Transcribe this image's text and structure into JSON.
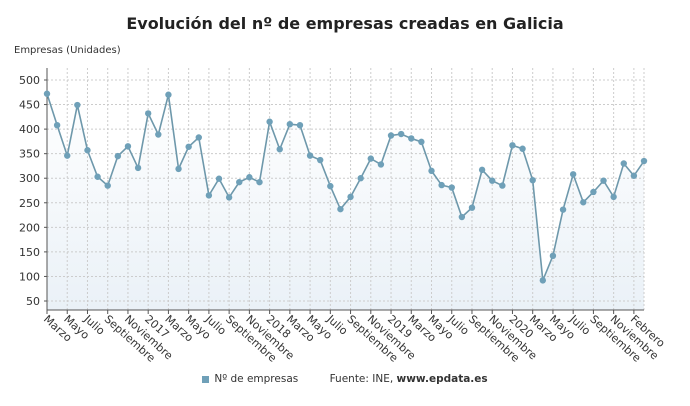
{
  "chart_data": {
    "type": "line",
    "title": "Evolución del nº de empresas creadas en Galicia",
    "ylabel": "Empresas (Unidades)",
    "ylim": [
      50,
      520
    ],
    "yticks": [
      50,
      100,
      150,
      200,
      250,
      300,
      350,
      400,
      450,
      500
    ],
    "grid": true,
    "legend_placement": "bottom",
    "series_color": "#6fa0b8",
    "tick_labels": [
      "Marzo",
      "Mayo",
      "Julio",
      "Septiembre",
      "Noviembre",
      "2017",
      "Marzo",
      "Mayo",
      "Julio",
      "Septiembre",
      "Noviembre",
      "2018",
      "Marzo",
      "Mayo",
      "Julio",
      "Septiembre",
      "Noviembre",
      "2019",
      "Marzo",
      "Mayo",
      "Julio",
      "Septiembre",
      "Noviembre",
      "2020",
      "Marzo",
      "Mayo",
      "Julio",
      "Septiembre",
      "Noviembre",
      "Febrero"
    ],
    "series": [
      {
        "name": "Nº de empresas",
        "values": [
          472,
          408,
          346,
          449,
          357,
          303,
          285,
          345,
          365,
          321,
          432,
          389,
          470,
          319,
          364,
          383,
          265,
          299,
          261,
          292,
          302,
          292,
          415,
          359,
          410,
          408,
          346,
          337,
          284,
          237,
          262,
          300,
          340,
          328,
          387,
          390,
          381,
          374,
          315,
          286,
          281,
          221,
          240,
          317,
          295,
          285,
          367,
          360,
          296,
          92,
          142,
          236,
          308,
          251,
          272,
          295,
          262,
          330,
          305,
          335
        ]
      }
    ]
  },
  "legend": {
    "series_label": "Nº de empresas",
    "source_prefix": "Fuente: INE, ",
    "source_site": "www.epdata.es"
  }
}
